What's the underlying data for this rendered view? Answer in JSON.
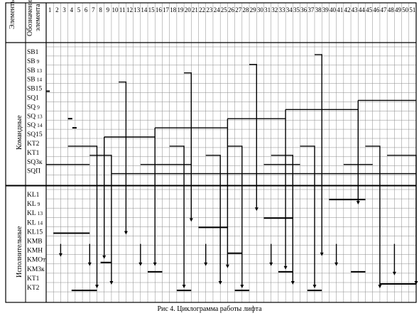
{
  "header": {
    "elements_label": "Элементы",
    "designation_label_line1": "Обозначение",
    "designation_label_line2": "элемента"
  },
  "groups": {
    "command": "Командные",
    "executive": "Исполнительные"
  },
  "columns": [
    "1",
    "2",
    "3",
    "4",
    "5",
    "6",
    "7",
    "8",
    "9",
    "10",
    "11",
    "12",
    "13",
    "14",
    "15",
    "16",
    "17",
    "18",
    "19",
    "20",
    "21",
    "22",
    "23",
    "24",
    "25",
    "26",
    "27",
    "28",
    "29",
    "30",
    "31",
    "32",
    "33",
    "34",
    "35",
    "36",
    "37",
    "38",
    "39",
    "40",
    "41",
    "42",
    "43",
    "44",
    "45",
    "46",
    "47",
    "48",
    "49",
    "50",
    "51"
  ],
  "command_rows": [
    {
      "base": "SB",
      "sub": "1",
      "sub_style": "inline"
    },
    {
      "base": "SB",
      "sub": "9",
      "sub_style": "small"
    },
    {
      "base": "SB",
      "sub": "13",
      "sub_style": "small"
    },
    {
      "base": "SB",
      "sub": "14",
      "sub_style": "small"
    },
    {
      "base": "SB15",
      "sub": "",
      "sub_style": "inline"
    },
    {
      "base": "SQ1",
      "sub": "",
      "sub_style": "inline"
    },
    {
      "base": "SQ",
      "sub": "9",
      "sub_style": "small"
    },
    {
      "base": "SQ",
      "sub": "13",
      "sub_style": "small"
    },
    {
      "base": "SQ",
      "sub": "14",
      "sub_style": "small"
    },
    {
      "base": "SQ15",
      "sub": "",
      "sub_style": "inline"
    },
    {
      "base": "KT2",
      "sub": "",
      "sub_style": "inline"
    },
    {
      "base": "KT1",
      "sub": "",
      "sub_style": "inline"
    },
    {
      "base": "SQ3к",
      "sub": "",
      "sub_style": "inline"
    },
    {
      "base": "SQП",
      "sub": "",
      "sub_style": "inline"
    }
  ],
  "executive_rows": [
    {
      "base": "KL1",
      "sub": "",
      "sub_style": "inline"
    },
    {
      "base": "KL",
      "sub": "9",
      "sub_style": "small"
    },
    {
      "base": "KL",
      "sub": "13",
      "sub_style": "small"
    },
    {
      "base": "KL",
      "sub": "14",
      "sub_style": "small"
    },
    {
      "base": "KL15",
      "sub": "",
      "sub_style": "inline"
    },
    {
      "base": "KMB",
      "sub": "",
      "sub_style": "inline"
    },
    {
      "base": "KMH",
      "sub": "",
      "sub_style": "inline"
    },
    {
      "base": "KMOт",
      "sub": "",
      "sub_style": "inline"
    },
    {
      "base": "KM3к",
      "sub": "",
      "sub_style": "inline"
    },
    {
      "base": "KT1",
      "sub": "",
      "sub_style": "inline"
    },
    {
      "base": "KT2",
      "sub": "",
      "sub_style": "inline"
    }
  ],
  "caption": "Рис 4. Циклограмма работы лифта",
  "colors": {
    "line": "#000000",
    "grid": "#8a8a8a",
    "background": "#ffffff"
  }
}
